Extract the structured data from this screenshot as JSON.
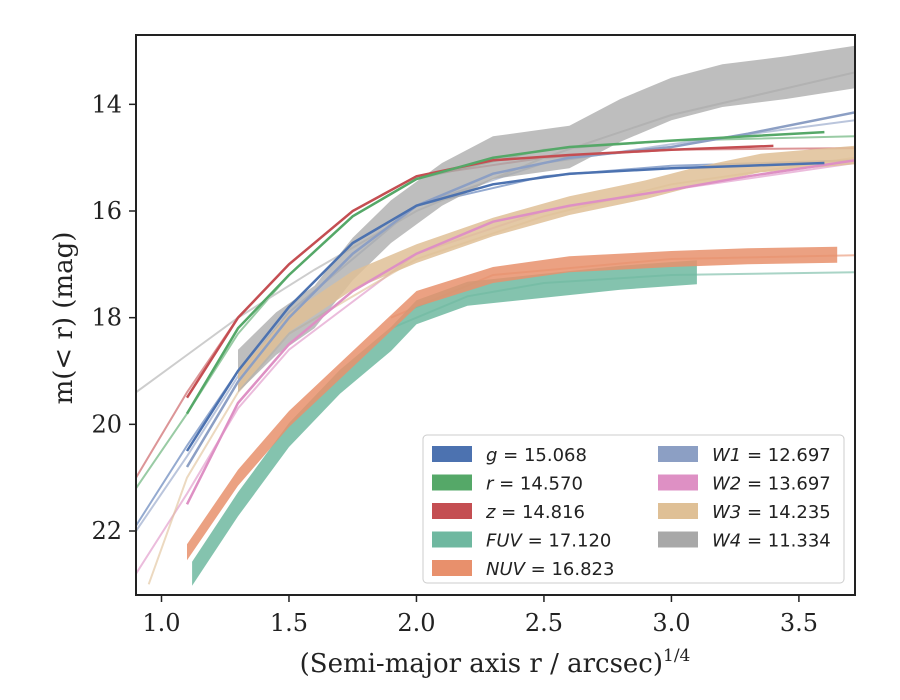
{
  "chart_data": {
    "type": "line",
    "xlabel": "(Semi-major axis r / arcsec)",
    "xlabel_var": "r",
    "xlabel_exp": "1/4",
    "ylabel": "m(< r) (mag)",
    "xlim": [
      0.9,
      3.72
    ],
    "ylim": [
      23.2,
      12.7
    ],
    "y_inverted": true,
    "xticks": [
      1.0,
      1.5,
      2.0,
      2.5,
      3.0,
      3.5
    ],
    "xtick_labels": [
      "1.0",
      "1.5",
      "2.0",
      "2.5",
      "3.0",
      "3.5"
    ],
    "yticks": [
      14,
      16,
      18,
      20,
      22
    ],
    "ytick_labels": [
      "14",
      "16",
      "18",
      "20",
      "22"
    ],
    "grid": false,
    "legend_position": "lower-right",
    "legend": [
      {
        "band": "g",
        "value": "15.068",
        "color": "#4c72b0"
      },
      {
        "band": "r",
        "value": "14.570",
        "color": "#55a868"
      },
      {
        "band": "z",
        "value": "14.816",
        "color": "#c44e52"
      },
      {
        "band": "FUV",
        "value": "17.120",
        "color": "#6fb8a0"
      },
      {
        "band": "NUV",
        "value": "16.823",
        "color": "#e8906c"
      },
      {
        "band": "W1",
        "value": "12.697",
        "color": "#8c9fc4"
      },
      {
        "band": "W2",
        "value": "13.697",
        "color": "#de90c4"
      },
      {
        "band": "W3",
        "value": "14.235",
        "color": "#dfc096"
      },
      {
        "band": "W4",
        "value": "11.334",
        "color": "#a8a8a8"
      }
    ],
    "series": [
      {
        "name": "g",
        "color": "#4c72b0",
        "data": [
          [
            1.1,
            20.5
          ],
          [
            1.3,
            19.0
          ],
          [
            1.5,
            17.8
          ],
          [
            1.75,
            16.6
          ],
          [
            2.0,
            15.9
          ],
          [
            2.3,
            15.5
          ],
          [
            2.6,
            15.3
          ],
          [
            3.0,
            15.2
          ],
          [
            3.3,
            15.15
          ],
          [
            3.6,
            15.1
          ]
        ],
        "model": [
          [
            0.9,
            21.9
          ],
          [
            1.1,
            20.4
          ],
          [
            1.3,
            19.0
          ],
          [
            1.5,
            17.8
          ],
          [
            1.75,
            16.6
          ],
          [
            2.0,
            15.9
          ],
          [
            2.5,
            15.35
          ],
          [
            3.0,
            15.15
          ],
          [
            3.72,
            15.05
          ]
        ]
      },
      {
        "name": "r",
        "color": "#55a868",
        "data": [
          [
            1.1,
            19.8
          ],
          [
            1.3,
            18.2
          ],
          [
            1.5,
            17.2
          ],
          [
            1.75,
            16.1
          ],
          [
            2.0,
            15.4
          ],
          [
            2.3,
            15.0
          ],
          [
            2.6,
            14.8
          ],
          [
            3.0,
            14.68
          ],
          [
            3.3,
            14.6
          ],
          [
            3.6,
            14.52
          ]
        ],
        "model": [
          [
            0.9,
            21.2
          ],
          [
            1.1,
            19.8
          ],
          [
            1.3,
            18.3
          ],
          [
            1.5,
            17.2
          ],
          [
            1.75,
            16.1
          ],
          [
            2.0,
            15.4
          ],
          [
            2.5,
            14.85
          ],
          [
            3.0,
            14.68
          ],
          [
            3.72,
            14.6
          ]
        ]
      },
      {
        "name": "z",
        "color": "#c44e52",
        "data": [
          [
            1.1,
            19.5
          ],
          [
            1.3,
            18.0
          ],
          [
            1.5,
            17.0
          ],
          [
            1.75,
            16.0
          ],
          [
            2.0,
            15.35
          ],
          [
            2.3,
            15.05
          ],
          [
            2.6,
            14.95
          ],
          [
            3.0,
            14.85
          ],
          [
            3.4,
            14.78
          ]
        ],
        "model": [
          [
            0.9,
            21.0
          ],
          [
            1.1,
            19.4
          ],
          [
            1.3,
            18.0
          ],
          [
            1.5,
            17.0
          ],
          [
            1.75,
            16.0
          ],
          [
            2.0,
            15.35
          ],
          [
            2.5,
            15.0
          ],
          [
            3.0,
            14.85
          ],
          [
            3.72,
            14.82
          ]
        ]
      },
      {
        "name": "FUV",
        "color": "#6fb8a0",
        "data": [
          [
            1.12,
            22.8
          ],
          [
            1.3,
            21.5
          ],
          [
            1.5,
            20.2
          ],
          [
            1.7,
            19.2
          ],
          [
            1.9,
            18.4
          ],
          [
            2.0,
            17.9
          ],
          [
            2.2,
            17.55
          ],
          [
            2.5,
            17.4
          ],
          [
            2.8,
            17.25
          ],
          [
            3.1,
            17.15
          ]
        ],
        "band_width": 0.45,
        "model": [
          [
            1.9,
            18.2
          ],
          [
            2.2,
            17.6
          ],
          [
            2.5,
            17.35
          ],
          [
            3.0,
            17.2
          ],
          [
            3.72,
            17.15
          ]
        ]
      },
      {
        "name": "NUV",
        "color": "#e8906c",
        "data": [
          [
            1.1,
            22.4
          ],
          [
            1.3,
            21.0
          ],
          [
            1.5,
            19.9
          ],
          [
            1.7,
            19.0
          ],
          [
            1.9,
            18.1
          ],
          [
            2.0,
            17.65
          ],
          [
            2.3,
            17.2
          ],
          [
            2.6,
            17.0
          ],
          [
            3.0,
            16.9
          ],
          [
            3.3,
            16.85
          ],
          [
            3.65,
            16.82
          ]
        ],
        "band_width": 0.3,
        "model": [
          [
            1.9,
            18.0
          ],
          [
            2.3,
            17.2
          ],
          [
            3.0,
            16.9
          ],
          [
            3.72,
            16.83
          ]
        ]
      },
      {
        "name": "W1",
        "color": "#8c9fc4",
        "data": [
          [
            1.1,
            20.8
          ],
          [
            1.3,
            19.2
          ],
          [
            1.5,
            18.0
          ],
          [
            1.75,
            16.8
          ],
          [
            2.0,
            15.9
          ],
          [
            2.3,
            15.3
          ],
          [
            2.6,
            15.0
          ],
          [
            3.0,
            14.8
          ],
          [
            3.3,
            14.55
          ],
          [
            3.72,
            14.15
          ]
        ],
        "model": [
          [
            0.9,
            22.0
          ],
          [
            1.1,
            20.6
          ],
          [
            1.3,
            19.1
          ],
          [
            1.5,
            17.9
          ],
          [
            2.0,
            15.9
          ],
          [
            2.5,
            15.1
          ],
          [
            3.0,
            14.75
          ],
          [
            3.72,
            14.3
          ]
        ]
      },
      {
        "name": "W2",
        "color": "#de90c4",
        "data": [
          [
            1.1,
            21.5
          ],
          [
            1.3,
            19.6
          ],
          [
            1.5,
            18.5
          ],
          [
            1.75,
            17.5
          ],
          [
            2.0,
            16.8
          ],
          [
            2.3,
            16.2
          ],
          [
            2.6,
            15.9
          ],
          [
            3.0,
            15.6
          ],
          [
            3.3,
            15.35
          ],
          [
            3.72,
            15.05
          ]
        ],
        "model": [
          [
            0.9,
            22.8
          ],
          [
            1.1,
            21.3
          ],
          [
            1.3,
            19.7
          ],
          [
            1.5,
            18.6
          ],
          [
            2.0,
            16.8
          ],
          [
            2.5,
            16.0
          ],
          [
            3.0,
            15.6
          ],
          [
            3.72,
            15.1
          ]
        ]
      },
      {
        "name": "W3",
        "color": "#dfc096",
        "data": [
          [
            1.3,
            19.2
          ],
          [
            1.5,
            18.1
          ],
          [
            1.75,
            17.3
          ],
          [
            2.0,
            16.8
          ],
          [
            2.3,
            16.3
          ],
          [
            2.6,
            15.9
          ],
          [
            2.9,
            15.6
          ],
          [
            3.1,
            15.35
          ],
          [
            3.35,
            15.1
          ],
          [
            3.72,
            14.95
          ]
        ],
        "band_width": 0.35,
        "model": [
          [
            0.95,
            23.0
          ],
          [
            1.1,
            21.0
          ],
          [
            1.3,
            19.4
          ],
          [
            1.5,
            18.3
          ],
          [
            2.0,
            16.9
          ],
          [
            2.5,
            16.1
          ],
          [
            3.0,
            15.5
          ],
          [
            3.72,
            15.0
          ]
        ]
      },
      {
        "name": "W4",
        "color": "#a8a8a8",
        "data": [
          [
            1.3,
            19.0
          ],
          [
            1.45,
            18.3
          ],
          [
            1.6,
            17.8
          ],
          [
            1.75,
            16.9
          ],
          [
            1.9,
            16.2
          ],
          [
            2.1,
            15.5
          ],
          [
            2.3,
            15.0
          ],
          [
            2.6,
            14.8
          ],
          [
            2.8,
            14.3
          ],
          [
            3.0,
            13.9
          ],
          [
            3.2,
            13.65
          ],
          [
            3.45,
            13.5
          ],
          [
            3.72,
            13.3
          ]
        ],
        "band_width": 0.8,
        "model": [
          [
            0.9,
            19.4
          ],
          [
            1.1,
            18.7
          ],
          [
            1.3,
            18.0
          ],
          [
            1.6,
            17.1
          ],
          [
            2.0,
            16.0
          ],
          [
            2.5,
            15.0
          ],
          [
            3.0,
            14.2
          ],
          [
            3.72,
            13.4
          ]
        ]
      }
    ]
  }
}
